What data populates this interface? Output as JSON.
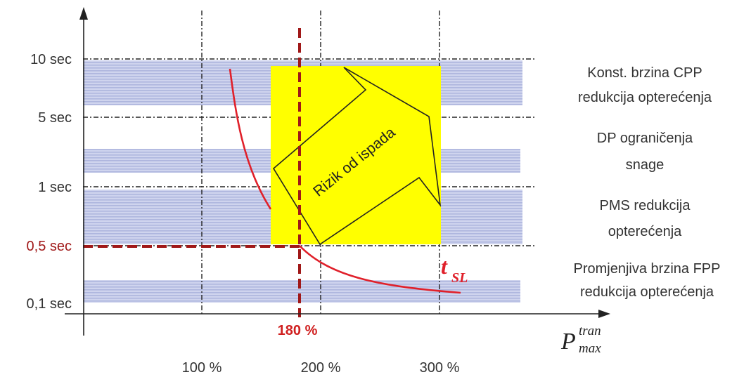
{
  "y_labels": {
    "s10": "10 sec",
    "s5": "5 sec",
    "s1": "1 sec",
    "s05": "0,5 sec",
    "s01": "0,1 sec"
  },
  "x_labels": {
    "p100": "100 %",
    "p200": "200 %",
    "p300": "300 %",
    "p180": "180 %"
  },
  "x_axis": {
    "symbol": "P",
    "sup": "tran",
    "sub": "max"
  },
  "curve_label": {
    "main": "t",
    "sub": "SL"
  },
  "arrow_text": "Rizik od ispada",
  "right_labels": {
    "cpp_line1": "Konst. brzina CPP",
    "cpp_line2": "redukcija opterećenja",
    "dp_line1": "DP ograničenja",
    "dp_line2": "snage",
    "pms_line1": "PMS redukcija",
    "pms_line2": "opterećenja",
    "fpp_line1": "Promjenjiva brzina FPP",
    "fpp_line2": "redukcija opterećenja"
  },
  "colors": {
    "band": "#c5cbe8",
    "stripe": "#b3badf",
    "risk_box": "#ffff00",
    "curve": "#e0202a",
    "threshold": "#a01818",
    "axis": "#222222"
  }
}
